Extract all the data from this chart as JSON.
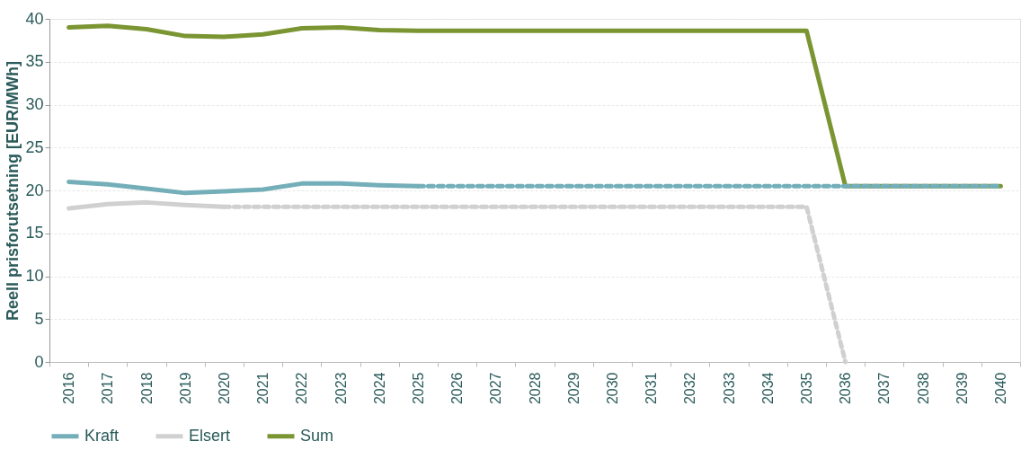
{
  "chart_data": {
    "type": "line",
    "ylabel": "Reell prisforutsetning [EUR/MWh]",
    "categories": [
      "2016",
      "2017",
      "2018",
      "2019",
      "2020",
      "2021",
      "2022",
      "2023",
      "2024",
      "2025",
      "2026",
      "2027",
      "2028",
      "2029",
      "2030",
      "2031",
      "2032",
      "2033",
      "2034",
      "2035",
      "2036",
      "2037",
      "2038",
      "2039",
      "2040"
    ],
    "ylim": [
      0,
      40
    ],
    "yticks": [
      0,
      5,
      10,
      15,
      20,
      25,
      30,
      35,
      40
    ],
    "grid": "y",
    "legend": "bottom",
    "marker": "none",
    "series": [
      {
        "name": "Kraft",
        "color": "#74afb9",
        "line_style": "solid",
        "values": [
          21.0,
          20.7,
          20.2,
          19.7,
          19.9,
          20.1,
          20.8,
          20.8,
          20.6,
          20.5,
          null,
          null,
          null,
          null,
          null,
          null,
          null,
          null,
          null,
          null,
          null,
          null,
          null,
          null,
          null
        ]
      },
      {
        "name": "Elsert",
        "color": "#d0d0d0",
        "line_style": "solid",
        "values": [
          17.9,
          18.4,
          18.6,
          18.3,
          18.1,
          null,
          null,
          null,
          null,
          null,
          null,
          null,
          null,
          null,
          null,
          null,
          null,
          null,
          null,
          null,
          null,
          null,
          null,
          null,
          null
        ]
      },
      {
        "name": "Sum",
        "color": "#7a9532",
        "line_style": "solid",
        "values": [
          39.0,
          39.2,
          38.8,
          38.0,
          37.9,
          38.2,
          38.9,
          39.0,
          38.7,
          38.6,
          38.6,
          38.6,
          38.6,
          38.6,
          38.6,
          38.6,
          38.6,
          38.6,
          38.6,
          38.6,
          20.5,
          20.5,
          20.5,
          20.5,
          20.5
        ]
      },
      {
        "color": "#74afb9",
        "line_style": "dashed",
        "values": [
          null,
          null,
          null,
          null,
          null,
          null,
          null,
          null,
          null,
          20.5,
          20.5,
          20.5,
          20.5,
          20.5,
          20.5,
          20.5,
          20.5,
          20.5,
          20.5,
          20.5,
          20.5,
          20.5,
          20.5,
          20.5,
          20.5
        ]
      },
      {
        "color": "#d0d0d0",
        "line_style": "dashed",
        "values": [
          null,
          null,
          null,
          null,
          18.1,
          18.1,
          18.1,
          18.1,
          18.1,
          18.1,
          18.1,
          18.1,
          18.1,
          18.1,
          18.1,
          18.1,
          18.1,
          18.1,
          18.1,
          18.1,
          0,
          null,
          null,
          null,
          null
        ]
      }
    ]
  }
}
